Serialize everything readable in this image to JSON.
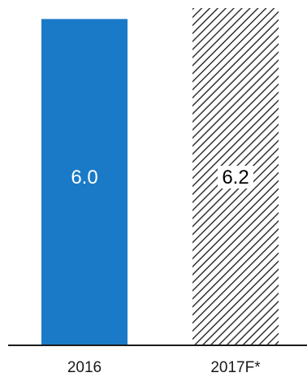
{
  "colors": {
    "solid_bar": "#1a7ac7",
    "hatch": "#333333",
    "axis": "#1a1a1a",
    "label_light": "#ffffff",
    "label_dark": "#000000"
  },
  "chart_data": {
    "type": "bar",
    "categories": [
      "2016",
      "2017F*"
    ],
    "values": [
      6.0,
      6.2
    ],
    "value_labels": [
      "6.0",
      "6.2"
    ],
    "bar_styles": [
      "solid",
      "hatched"
    ],
    "title": "",
    "xlabel": "",
    "ylabel": "",
    "ylim": [
      0,
      6.2
    ],
    "grid": false,
    "legend": "none"
  }
}
